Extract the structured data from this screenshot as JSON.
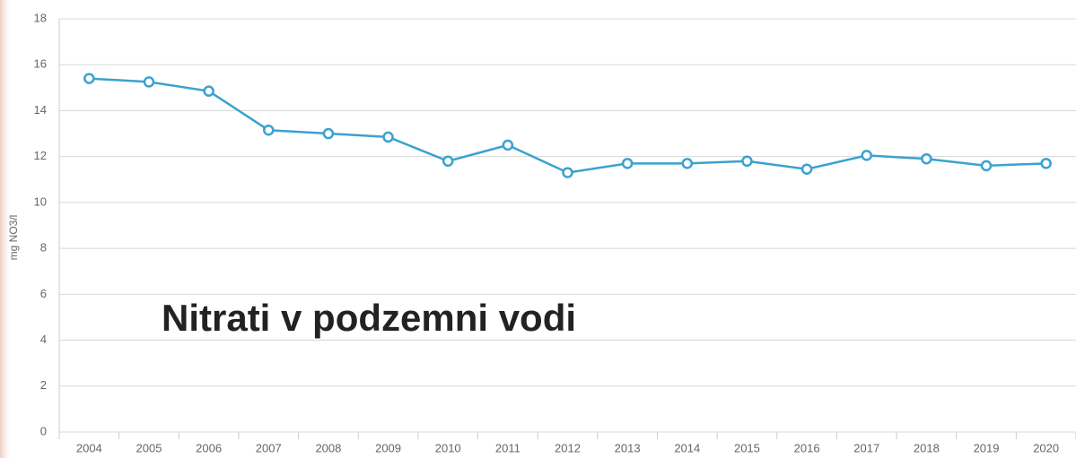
{
  "chart_data": {
    "type": "line",
    "title": "Nitrati v podzemni vodi",
    "y_label": "mg NO3/l",
    "categories": [
      "2004",
      "2005",
      "2006",
      "2007",
      "2008",
      "2009",
      "2010",
      "2011",
      "2012",
      "2013",
      "2014",
      "2015",
      "2016",
      "2017",
      "2018",
      "2019",
      "2020"
    ],
    "series": [
      {
        "name": "Nitrati",
        "color": "#3aa2cf",
        "values": [
          15.4,
          15.25,
          14.85,
          13.15,
          13.0,
          12.85,
          11.8,
          12.5,
          11.3,
          11.7,
          11.7,
          11.8,
          11.45,
          12.05,
          11.9,
          11.6,
          11.7
        ]
      }
    ],
    "ylim": [
      0,
      18
    ],
    "yticks": [
      0,
      2,
      4,
      6,
      8,
      10,
      12,
      14,
      16,
      18
    ],
    "grid": true
  }
}
